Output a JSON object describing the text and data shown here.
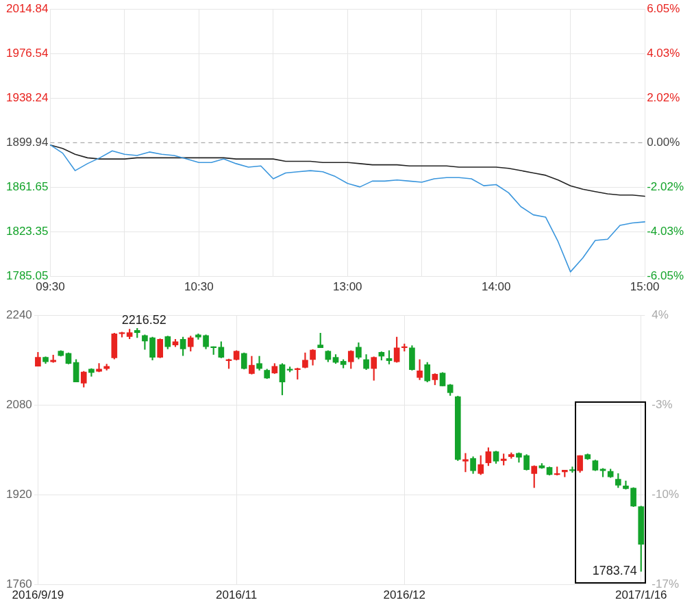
{
  "chart_data": [
    {
      "type": "line",
      "categories": [
        "09:30",
        null,
        null,
        null,
        null,
        null,
        null,
        null,
        null,
        null,
        null,
        null,
        "10:30",
        null,
        null,
        null,
        null,
        null,
        null,
        null,
        null,
        null,
        null,
        null,
        "13:00",
        null,
        null,
        null,
        null,
        null,
        null,
        null,
        null,
        null,
        null,
        null,
        "14:00",
        null,
        null,
        null,
        null,
        null,
        null,
        null,
        null,
        null,
        null,
        null,
        "15:00"
      ],
      "ylim": [
        1785.05,
        2014.84
      ],
      "yticks": [
        1785.05,
        1823.35,
        1861.65,
        1899.94,
        1938.24,
        1976.54,
        2014.84
      ],
      "y2lim": [
        -6.05,
        6.05
      ],
      "y2ticks": [
        {
          "value": -6.05,
          "label": "-6.05%"
        },
        {
          "value": -4.03,
          "label": "-4.03%"
        },
        {
          "value": -2.02,
          "label": "-2.02%"
        },
        {
          "value": 0,
          "label": "0.00%"
        },
        {
          "value": 2.02,
          "label": "2.02%"
        },
        {
          "value": 4.03,
          "label": "4.03%"
        },
        {
          "value": 6.05,
          "label": "6.05%"
        }
      ],
      "ref_lines": [
        {
          "axis": "y",
          "value": 1899.94,
          "color": "#aaaaaa",
          "line_style": "dashed"
        }
      ],
      "grid": true,
      "marker": "none",
      "series": [
        {
          "color": "#3a96dd",
          "values": [
            1898,
            1891,
            1876,
            1882,
            1887,
            1893,
            1890,
            1889,
            1892,
            1890,
            1889,
            1886,
            1883,
            1883,
            1886,
            1882,
            1879,
            1880,
            1869,
            1874,
            1875,
            1876,
            1875,
            1871,
            1865,
            1862,
            1867,
            1867,
            1868,
            1867,
            1866,
            1869,
            1870,
            1870,
            1869,
            1863,
            1864,
            1857,
            1845,
            1838,
            1836,
            1815,
            1789,
            1801,
            1816,
            1817,
            1829,
            1831,
            1832
          ]
        },
        {
          "color": "#222222",
          "values": [
            1898,
            1895,
            1890,
            1887,
            1886,
            1886,
            1886,
            1887,
            1887,
            1887,
            1887,
            1887,
            1887,
            1887,
            1887,
            1886,
            1886,
            1886,
            1886,
            1884,
            1884,
            1884,
            1883,
            1883,
            1883,
            1882,
            1881,
            1881,
            1881,
            1880,
            1880,
            1880,
            1880,
            1879,
            1879,
            1879,
            1879,
            1878,
            1876,
            1874,
            1872,
            1868,
            1863,
            1860,
            1858,
            1856,
            1855,
            1855,
            1854
          ]
        }
      ]
    },
    {
      "type": "candlestick",
      "categories": [
        "2016/9/19",
        null,
        null,
        null,
        null,
        null,
        null,
        null,
        null,
        null,
        null,
        null,
        null,
        null,
        null,
        null,
        null,
        null,
        null,
        null,
        null,
        null,
        null,
        null,
        null,
        null,
        "2016/11",
        null,
        null,
        null,
        null,
        null,
        null,
        null,
        null,
        null,
        null,
        null,
        null,
        null,
        null,
        null,
        null,
        null,
        null,
        null,
        null,
        null,
        "2016/12",
        null,
        null,
        null,
        null,
        null,
        null,
        null,
        null,
        null,
        null,
        null,
        null,
        null,
        null,
        null,
        null,
        null,
        null,
        null,
        null,
        null,
        null,
        null,
        null,
        null,
        null,
        null,
        null,
        null,
        null,
        "2017/1/16"
      ],
      "ohlc": [
        [
          2149,
          2174,
          2149,
          2165
        ],
        [
          2165,
          2166,
          2154,
          2157
        ],
        [
          2157,
          2169,
          2156,
          2160
        ],
        [
          2176,
          2177,
          2167,
          2168
        ],
        [
          2172,
          2173,
          2153,
          2154
        ],
        [
          2156,
          2161,
          2121,
          2121
        ],
        [
          2119,
          2140,
          2112,
          2139
        ],
        [
          2144,
          2145,
          2131,
          2138
        ],
        [
          2140,
          2154,
          2139,
          2144
        ],
        [
          2145,
          2153,
          2142,
          2149
        ],
        [
          2164,
          2208,
          2162,
          2207
        ],
        [
          2207,
          2210,
          2201,
          2209
        ],
        [
          2202,
          2215,
          2198,
          2209
        ],
        [
          2213,
          2216.52,
          2200,
          2209
        ],
        [
          2204,
          2205,
          2179,
          2194
        ],
        [
          2200,
          2201,
          2160,
          2165
        ],
        [
          2165,
          2198,
          2164,
          2197
        ],
        [
          2202,
          2203,
          2180,
          2184
        ],
        [
          2187,
          2197,
          2184,
          2193
        ],
        [
          2197,
          2201,
          2168,
          2180
        ],
        [
          2184,
          2203,
          2176,
          2200
        ],
        [
          2205,
          2207,
          2197,
          2201
        ],
        [
          2204,
          2205,
          2180,
          2184
        ],
        [
          2184,
          2184,
          2170,
          2182
        ],
        [
          2183,
          2193,
          2164,
          2165
        ],
        [
          2159,
          2162,
          2145,
          2161
        ],
        [
          2161,
          2177,
          2160,
          2176
        ],
        [
          2172,
          2173,
          2144,
          2145
        ],
        [
          2136,
          2167,
          2135,
          2151
        ],
        [
          2154,
          2167,
          2142,
          2145
        ],
        [
          2142,
          2144,
          2127,
          2128
        ],
        [
          2137,
          2154,
          2136,
          2149
        ],
        [
          2152,
          2154,
          2098,
          2121
        ],
        [
          2144,
          2148,
          2139,
          2142
        ],
        [
          2143,
          2146,
          2126,
          2145
        ],
        [
          2147,
          2173,
          2146,
          2160
        ],
        [
          2161,
          2179,
          2151,
          2178
        ],
        [
          2187,
          2208,
          2182,
          2182
        ],
        [
          2176,
          2177,
          2157,
          2161
        ],
        [
          2165,
          2170,
          2154,
          2156
        ],
        [
          2158,
          2161,
          2146,
          2152
        ],
        [
          2157,
          2177,
          2145,
          2176
        ],
        [
          2183,
          2191,
          2162,
          2165
        ],
        [
          2161,
          2170,
          2143,
          2145
        ],
        [
          2145,
          2166,
          2124,
          2165
        ],
        [
          2174,
          2175,
          2160,
          2167
        ],
        [
          2163,
          2177,
          2153,
          2159
        ],
        [
          2157,
          2201,
          2156,
          2182
        ],
        [
          2182,
          2189,
          2176,
          2184
        ],
        [
          2182,
          2186,
          2142,
          2143
        ],
        [
          2129,
          2161,
          2125,
          2141
        ],
        [
          2152,
          2156,
          2121,
          2123
        ],
        [
          2125,
          2136,
          2116,
          2135
        ],
        [
          2137,
          2138,
          2114,
          2114
        ],
        [
          2116,
          2117,
          2097,
          2102
        ],
        [
          2095,
          2096,
          1981,
          1983
        ],
        [
          1980,
          1994,
          1961,
          1983
        ],
        [
          1985,
          1988,
          1958,
          1963
        ],
        [
          1958,
          1990,
          1956,
          1974
        ],
        [
          1977,
          2004,
          1972,
          1997
        ],
        [
          1997,
          1998,
          1976,
          1980
        ],
        [
          1981,
          1993,
          1973,
          1984
        ],
        [
          1988,
          1995,
          1985,
          1992
        ],
        [
          1994,
          1995,
          1978,
          1987
        ],
        [
          1990,
          1992,
          1964,
          1965
        ],
        [
          1958,
          1972,
          1933,
          1971
        ],
        [
          1972,
          1976,
          1967,
          1968
        ],
        [
          1969,
          1970,
          1955,
          1956
        ],
        [
          1956,
          1970,
          1955,
          1958
        ],
        [
          1961,
          1964,
          1952,
          1964
        ],
        [
          1965,
          1970,
          1960,
          1963
        ],
        [
          1963,
          1990,
          1960,
          1990
        ],
        [
          1992,
          1993,
          1983,
          1984
        ],
        [
          1981,
          1982,
          1963,
          1964
        ],
        [
          1966,
          1967,
          1952,
          1963
        ],
        [
          1962,
          1966,
          1951,
          1952
        ],
        [
          1948,
          1958,
          1933,
          1937
        ],
        [
          1936,
          1945,
          1930,
          1931
        ],
        [
          1932,
          1933,
          1899,
          1900
        ],
        [
          1899,
          1900,
          1783.74,
          1832
        ]
      ],
      "ylim": [
        1760,
        2240
      ],
      "yticks": [
        1760,
        1920,
        2080,
        2240
      ],
      "y2lim": [
        -17,
        4
      ],
      "y2ticks": [
        {
          "value": -17,
          "label": "-17%"
        },
        {
          "value": -10,
          "label": "-10%"
        },
        {
          "value": -3,
          "label": "-3%"
        },
        {
          "value": 4,
          "label": "4%"
        }
      ],
      "grid": true,
      "annotations": [
        "2216.52",
        "1783.74"
      ]
    }
  ]
}
